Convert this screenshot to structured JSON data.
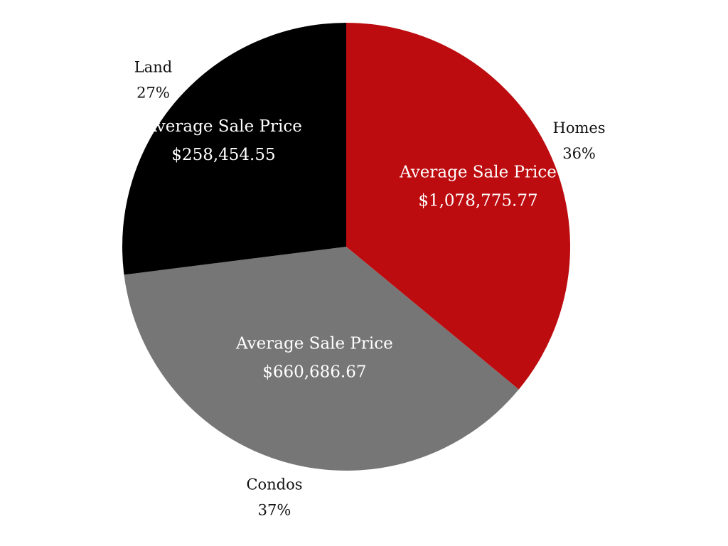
{
  "chart_data": {
    "type": "pie",
    "title": "",
    "start_angle_deg": 0,
    "direction": "clockwise",
    "slices": [
      {
        "category": "Homes",
        "percent_label": "36%",
        "value": 36,
        "color": "#bd0c0f",
        "inner_title": "Average Sale Price",
        "inner_value": "$1,078,775.77"
      },
      {
        "category": "Condos",
        "percent_label": "37%",
        "value": 37,
        "color": "#767676",
        "inner_title": "Average Sale Price",
        "inner_value": "$660,686.67"
      },
      {
        "category": "Land",
        "percent_label": "27%",
        "value": 27,
        "color": "#000000",
        "inner_title": "Average Sale Price",
        "inner_value": "$258,454.55"
      }
    ]
  }
}
